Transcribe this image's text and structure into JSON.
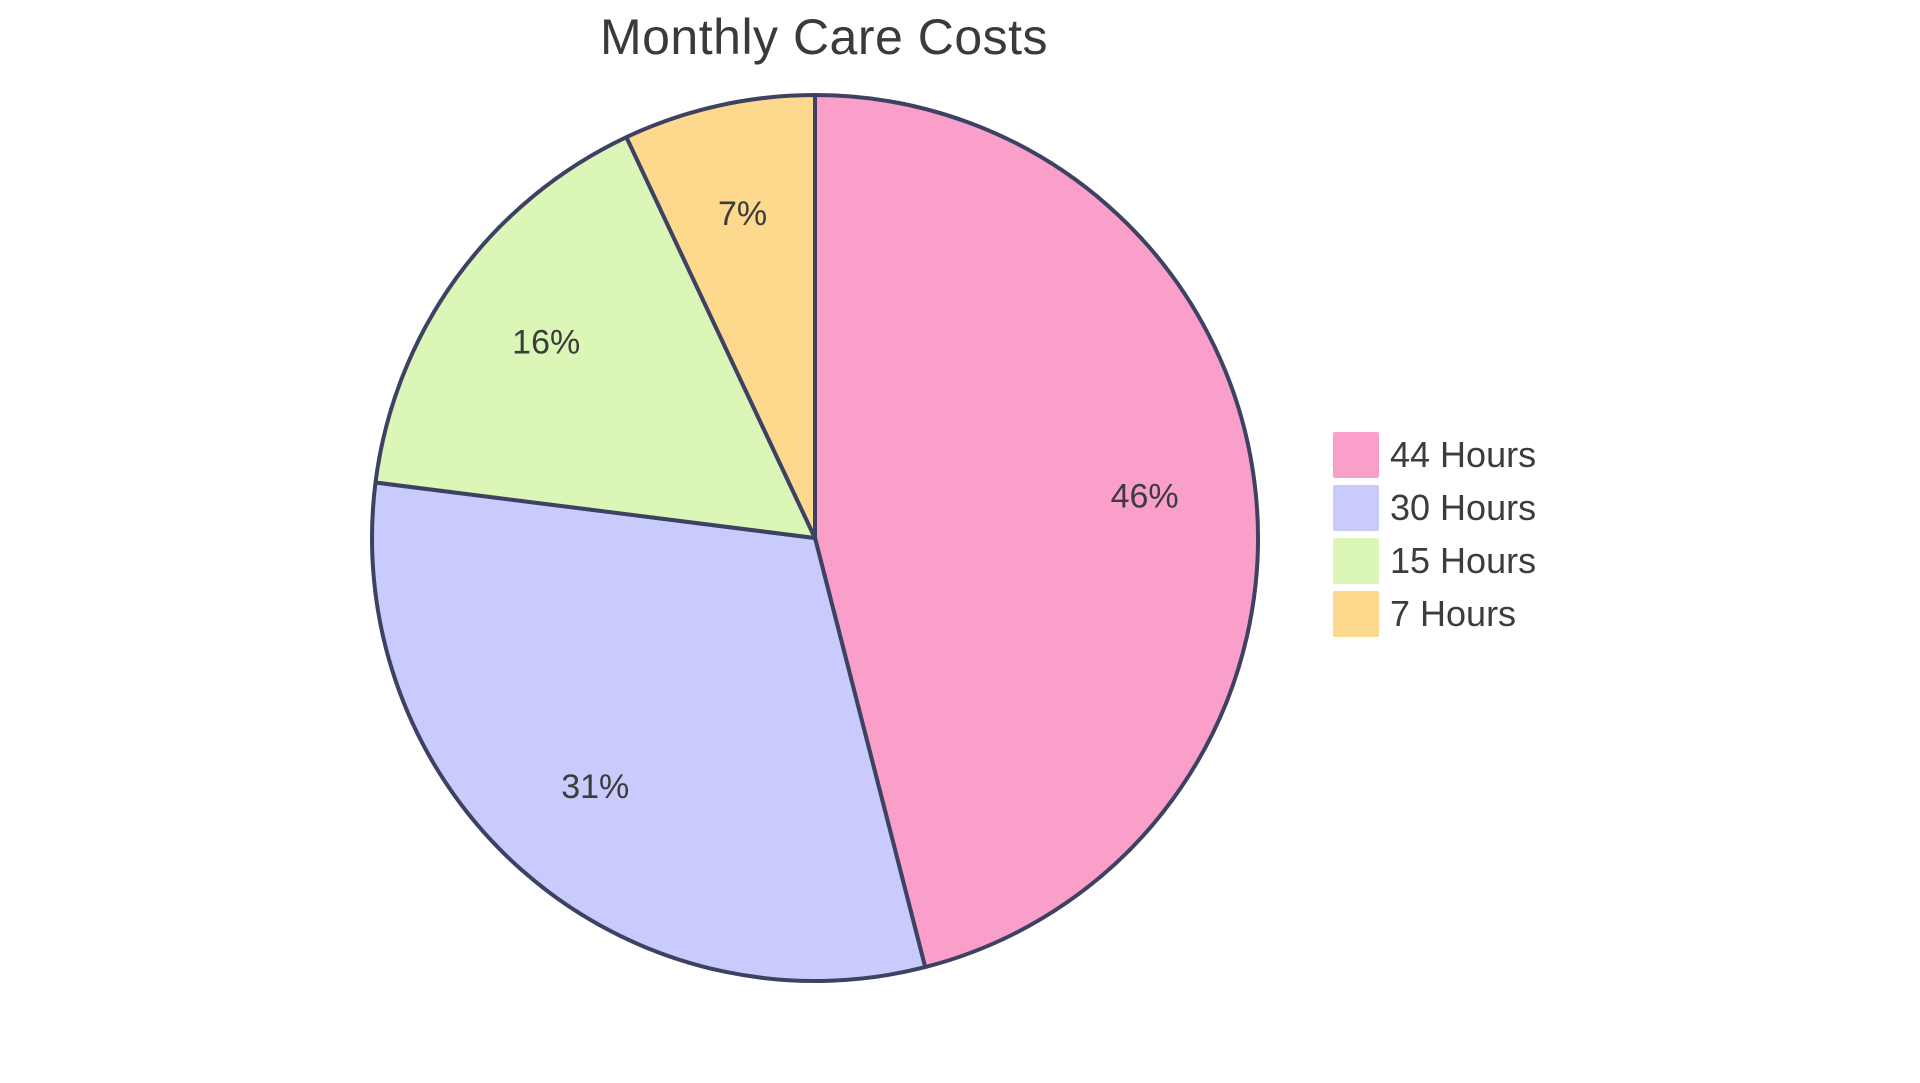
{
  "chart_data": {
    "type": "pie",
    "title": "Monthly Care Costs",
    "slices": [
      {
        "label": "44 Hours",
        "value": 46,
        "percent_label": "46%",
        "color": "#FA9FCA"
      },
      {
        "label": "30 Hours",
        "value": 31,
        "percent_label": "31%",
        "color": "#C9CBFC"
      },
      {
        "label": "15 Hours",
        "value": 16,
        "percent_label": "16%",
        "color": "#DBF6B6"
      },
      {
        "label": "7 Hours",
        "value": 7,
        "percent_label": "7%",
        "color": "#FCD98D"
      }
    ],
    "start_angle": "top",
    "direction": "clockwise",
    "stroke_color": "#3E4262",
    "stroke_width": 4,
    "label_radius_fraction": 0.75,
    "label_color": "#3C3C3C",
    "title_color": "#3A3A3A",
    "legend_position": "right",
    "background": "#FFFFFF"
  }
}
